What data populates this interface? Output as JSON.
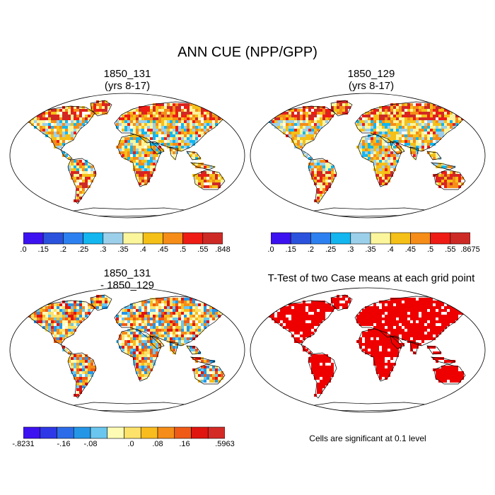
{
  "title": "ANN CUE (NPP/GPP)",
  "panels": [
    {
      "id": "p1",
      "title_lines": [
        "1850_131",
        "(yrs 8-17)"
      ],
      "kind": "absolute"
    },
    {
      "id": "p2",
      "title_lines": [
        "1850_129",
        "(yrs 8-17)"
      ],
      "kind": "absolute"
    },
    {
      "id": "p3",
      "title_lines": [
        "1850_131",
        "- 1850_129"
      ],
      "kind": "difference"
    },
    {
      "id": "p4",
      "title_lines": [
        "T-Test of two Case means at each grid point"
      ],
      "kind": "significance"
    }
  ],
  "colorbars": [
    {
      "id": "cb1",
      "colors": [
        "#3d12f0",
        "#2a52dd",
        "#2d80f0",
        "#13b6ef",
        "#9ccfea",
        "#fbf59c",
        "#f5c017",
        "#f58d18",
        "#ee1c14",
        "#cd2a26"
      ],
      "labels": [
        ".0",
        ".15",
        ".2",
        ".25",
        ".3",
        ".35",
        ".4",
        ".45",
        ".5",
        ".55",
        ".848"
      ]
    },
    {
      "id": "cb2",
      "colors": [
        "#3d12f0",
        "#2a52dd",
        "#2d80f0",
        "#13b6ef",
        "#9ccfea",
        "#fbf59c",
        "#f5c017",
        "#f58d18",
        "#ee1c14",
        "#cd2a26"
      ],
      "labels": [
        ".0",
        ".15",
        ".2",
        ".25",
        ".3",
        ".35",
        ".4",
        ".45",
        ".5",
        ".55",
        ".8675"
      ]
    },
    {
      "id": "cb3",
      "colors": [
        "#3d12f0",
        "#2e38e6",
        "#2d6ce8",
        "#2596e6",
        "#6ac6ee",
        "#fefcb4",
        "#fce26a",
        "#f8bc1f",
        "#f58d18",
        "#ef5a17",
        "#e0150f",
        "#d42a26"
      ],
      "labels": [
        "-.8231",
        "",
        "",
        "-.16",
        "",
        "-.08",
        "",
        "",
        ".0",
        "",
        ".08",
        "",
        ".16",
        "",
        "",
        ".5963"
      ]
    }
  ],
  "note": "Cells are significant at 0.1 level",
  "colors": {
    "significant": "#ee0000",
    "land_background": "#ffffff",
    "outline": "#000000"
  }
}
